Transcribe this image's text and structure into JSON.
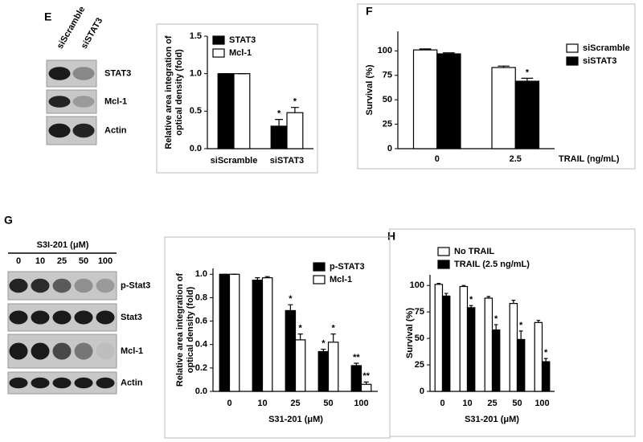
{
  "panels": [
    "E",
    "F",
    "G",
    "H"
  ],
  "blot_e": {
    "lanes": [
      "siScramble",
      "siSTAT3"
    ],
    "rows": [
      "STAT3",
      "Mcl-1",
      "Actin"
    ]
  },
  "blot_g": {
    "header": "S3I-201 (μM)",
    "lanes": [
      "0",
      "10",
      "25",
      "50",
      "100"
    ],
    "rows": [
      "p-Stat3",
      "Stat3",
      "Mcl-1",
      "Actin"
    ]
  },
  "chart_data": [
    {
      "type": "bar",
      "ylabel": [
        "Relative area integration of",
        "optical density (fold)"
      ],
      "categories": [
        "siScramble",
        "siSTAT3"
      ],
      "series": [
        {
          "name": "STAT3",
          "color": "#000000",
          "values": [
            1.0,
            0.3
          ],
          "errors": [
            0,
            0.09
          ],
          "significance": [
            null,
            "*"
          ]
        },
        {
          "name": "Mcl-1",
          "color": "#ffffff",
          "values": [
            1.0,
            0.48
          ],
          "errors": [
            0,
            0.07
          ],
          "significance": [
            null,
            "*"
          ]
        }
      ],
      "ylim": [
        0,
        1.5
      ],
      "yticks": [
        {
          "value": 0,
          "label": "0.0"
        },
        0.5,
        {
          "value": 1,
          "label": "1.0"
        },
        1.5
      ],
      "grid": false
    },
    {
      "type": "bar",
      "ylabel": [
        "Survival (%)"
      ],
      "xlabel": "TRAIL (ng/mL)",
      "categories": [
        "0",
        "2.5"
      ],
      "series": [
        {
          "name": "siScramble",
          "color": "#ffffff",
          "values": [
            101,
            83
          ],
          "errors": [
            1,
            1.5
          ],
          "significance": [
            null,
            null
          ]
        },
        {
          "name": "siSTAT3",
          "color": "#000000",
          "values": [
            97,
            69
          ],
          "errors": [
            1,
            3
          ],
          "significance": [
            null,
            "*"
          ]
        }
      ],
      "ylim": [
        0,
        120
      ],
      "yticks": [
        0,
        25,
        50,
        75,
        100
      ],
      "grid": false
    },
    {
      "type": "bar",
      "ylabel": [
        "Relative area integration of",
        "optical density (fold)"
      ],
      "xlabel": "S31-201 (μM)",
      "categories": [
        "0",
        "10",
        "25",
        "50",
        "100"
      ],
      "series": [
        {
          "name": "p-STAT3",
          "color": "#000000",
          "values": [
            1.0,
            0.95,
            0.69,
            0.34,
            0.22
          ],
          "errors": [
            0,
            0.02,
            0.05,
            0.02,
            0.02
          ],
          "significance": [
            null,
            null,
            "*",
            "*",
            "**"
          ]
        },
        {
          "name": "Mcl-1",
          "color": "#ffffff",
          "values": [
            1.0,
            0.97,
            0.44,
            0.42,
            0.06
          ],
          "errors": [
            0,
            0.01,
            0.05,
            0.07,
            0.02
          ],
          "significance": [
            null,
            null,
            "*",
            "*",
            "**"
          ]
        }
      ],
      "ylim": [
        0,
        1.05
      ],
      "yticks": [
        {
          "value": 0,
          "label": "0.0"
        },
        0.2,
        0.4,
        0.6,
        0.8,
        {
          "value": 1,
          "label": "1.0"
        }
      ],
      "grid": false
    },
    {
      "type": "bar",
      "ylabel": [
        "Survival (%)"
      ],
      "xlabel": "S31-201 (μM)",
      "categories": [
        "0",
        "10",
        "25",
        "50",
        "100"
      ],
      "series": [
        {
          "name": "No TRAIL",
          "color": "#ffffff",
          "values": [
            101,
            99,
            88,
            83,
            65
          ],
          "errors": [
            1,
            1,
            1.5,
            3,
            2
          ],
          "significance": [
            null,
            null,
            null,
            null,
            null
          ]
        },
        {
          "name": "TRAIL (2.5 ng/mL)",
          "color": "#000000",
          "values": [
            90,
            79,
            58,
            49,
            28
          ],
          "errors": [
            2.5,
            2,
            5,
            8,
            3
          ],
          "significance": [
            null,
            "*",
            "*",
            "*",
            "*"
          ]
        }
      ],
      "ylim": [
        0,
        110
      ],
      "yticks": [
        0,
        25,
        50,
        75,
        100
      ],
      "grid": false
    }
  ]
}
